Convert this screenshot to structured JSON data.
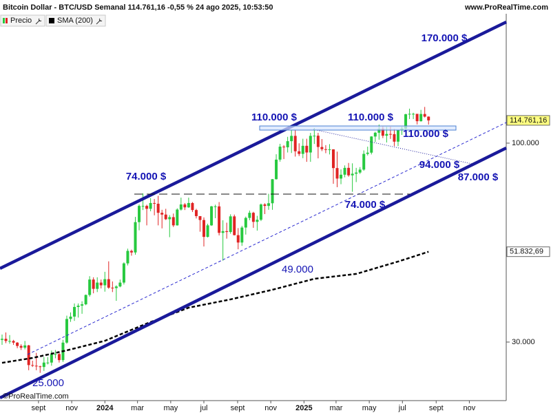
{
  "chart_data": {
    "type": "candlestick",
    "title": "Bitcoin Dollar - BTC/USD Semanal 114.761,16 -0,55 % 24 ago 2025, 10:53:50",
    "source": "www.ProRealTime.com",
    "copyright": "©ProRealTime.com",
    "log_scale": true,
    "ylim": [
      21050,
      218800
    ],
    "yticks": [
      {
        "value": 100000,
        "label": "100.000"
      },
      {
        "value": 30000,
        "label": "30.000"
      }
    ],
    "xlim": [
      -0.54,
      132.4
    ],
    "xticks": [
      {
        "value": 9.57,
        "label": "sept"
      },
      {
        "value": 18.29,
        "label": "nov"
      },
      {
        "value": 27,
        "label": "2024"
      },
      {
        "value": 35.57,
        "label": "mar"
      },
      {
        "value": 44.29,
        "label": "may"
      },
      {
        "value": 53,
        "label": "jul"
      },
      {
        "value": 61.86,
        "label": "sept"
      },
      {
        "value": 70.57,
        "label": "nov"
      },
      {
        "value": 79.29,
        "label": "2025"
      },
      {
        "value": 87.71,
        "label": "mar"
      },
      {
        "value": 96.43,
        "label": "may"
      },
      {
        "value": 105.14,
        "label": "jul"
      },
      {
        "value": 114,
        "label": "sept"
      },
      {
        "value": 122.71,
        "label": "nov"
      }
    ],
    "series": [
      {
        "name": "Precio",
        "type": "candlestick",
        "up_color": "#27c93f",
        "down_color": "#e02424",
        "open": [
          30400,
          30600,
          30200,
          30200,
          29900,
          29300,
          29000,
          29400,
          26100,
          26000,
          25900,
          25800,
          26500,
          26500,
          27900,
          27900,
          26900,
          29900,
          34500,
          35000,
          37100,
          37400,
          37700,
          39900,
          43800,
          41400,
          43000,
          42300,
          43900,
          41700,
          41600,
          42000,
          43000,
          48300,
          52100,
          51600,
          62000,
          68400,
          68400,
          67200,
          69600,
          69300,
          65600,
          64900,
          63100,
          63900,
          60800,
          66900,
          69000,
          67800,
          69600,
          66700,
          64300,
          62800,
          56700,
          60800,
          68200,
          68200,
          58100,
          58700,
          58400,
          64200,
          57300,
          54800,
          60000,
          63600,
          65600,
          62100,
          62900,
          69000,
          68400,
          69500,
          80400,
          90500,
          97900,
          97500,
          101200,
          104500,
          95200,
          93700,
          98400,
          94500,
          104500,
          104600,
          97700,
          96400,
          96100,
          96300,
          86000,
          80700,
          82600,
          86100,
          82300,
          83100,
          83700,
          85200,
          93700,
          94400,
          104100,
          106500,
          109000,
          104600,
          105700,
          105600,
          100900,
          108400,
          109200,
          119100,
          119400,
          119400,
          114200,
          119300,
          117400
        ],
        "high": [
          31400,
          31800,
          31300,
          30400,
          30000,
          29600,
          30200,
          29500,
          26800,
          28100,
          26000,
          27400,
          27400,
          28500,
          28600,
          28200,
          30400,
          35200,
          35900,
          37900,
          37900,
          38400,
          40000,
          44700,
          44400,
          44400,
          43800,
          45900,
          48900,
          43300,
          42300,
          43800,
          48600,
          52800,
          52500,
          64000,
          69000,
          73800,
          68900,
          71700,
          71300,
          72700,
          66800,
          67200,
          64700,
          65300,
          67400,
          71900,
          69600,
          71900,
          70000,
          67200,
          64300,
          63800,
          61400,
          68400,
          68900,
          70000,
          62700,
          61800,
          65000,
          64900,
          59800,
          60600,
          64100,
          66500,
          66000,
          64400,
          69400,
          69500,
          73600,
          80500,
          93500,
          99600,
          98800,
          103900,
          108300,
          108300,
          99900,
          102700,
          102700,
          106400,
          109600,
          106400,
          102500,
          98800,
          99400,
          96400,
          95000,
          85300,
          87400,
          88700,
          88500,
          86100,
          86500,
          95700,
          97900,
          104300,
          107100,
          111900,
          110600,
          110400,
          110500,
          108900,
          108500,
          110500,
          119500,
          123200,
          120200,
          119300,
          122300,
          124500,
          117600
        ],
        "low": [
          29500,
          29800,
          29700,
          29500,
          28900,
          28600,
          28700,
          25300,
          25800,
          25300,
          24900,
          25200,
          26200,
          26000,
          27200,
          26500,
          26600,
          29700,
          33900,
          34100,
          34800,
          35600,
          37500,
          39500,
          40300,
          40600,
          41500,
          40700,
          41400,
          40600,
          38500,
          41800,
          42500,
          47700,
          50600,
          50900,
          59000,
          66700,
          60800,
          66200,
          64600,
          60800,
          59700,
          62800,
          56600,
          60200,
          60700,
          66500,
          66700,
          67600,
          65900,
          63400,
          58500,
          53500,
          56500,
          60600,
          63500,
          57200,
          49100,
          56100,
          57800,
          57200,
          52600,
          53700,
          57500,
          62700,
          59900,
          58900,
          62400,
          65100,
          66800,
          66800,
          80200,
          89400,
          90800,
          94500,
          94200,
          92200,
          92500,
          91300,
          89300,
          89300,
          99500,
          91200,
          95300,
          94100,
          93400,
          78200,
          76600,
          78000,
          81300,
          81600,
          74500,
          79000,
          83000,
          84600,
          92800,
          93400,
          100700,
          102100,
          103100,
          100400,
          102600,
          98200,
          98200,
          105100,
          107500,
          115700,
          115700,
          112000,
          113900,
          116800,
          111900
        ],
        "close": [
          30600,
          30200,
          30200,
          29900,
          29300,
          29000,
          29400,
          26100,
          26000,
          25900,
          25800,
          26500,
          26500,
          27900,
          27900,
          26900,
          29900,
          34500,
          35000,
          37100,
          37400,
          37700,
          39900,
          43800,
          41400,
          43000,
          42300,
          43900,
          41700,
          41600,
          42000,
          43000,
          48300,
          52100,
          51600,
          62000,
          68400,
          68400,
          67200,
          69600,
          69300,
          65600,
          64900,
          63100,
          63900,
          60800,
          66900,
          69000,
          67800,
          69600,
          66700,
          64300,
          62800,
          56700,
          60800,
          68200,
          68200,
          58100,
          58700,
          58400,
          64200,
          57300,
          54800,
          60000,
          63600,
          65600,
          62100,
          62900,
          69000,
          68400,
          69500,
          80400,
          90500,
          97900,
          97500,
          101200,
          104500,
          95200,
          93700,
          98400,
          94500,
          104500,
          104600,
          97700,
          96400,
          96100,
          96300,
          86000,
          80700,
          82600,
          86100,
          82300,
          83100,
          83700,
          85200,
          93700,
          94400,
          104100,
          106500,
          109000,
          104600,
          105700,
          105600,
          100900,
          108400,
          109200,
          119100,
          119400,
          119400,
          114200,
          119300,
          117400,
          114761.16
        ],
        "last_label": {
          "value": 114761.16,
          "label": "114.761,16"
        }
      },
      {
        "name": "SMA (200)",
        "type": "line",
        "color": "#000000",
        "dashed": true,
        "x": [
          0,
          8,
          17,
          27,
          38,
          49,
          60,
          71,
          82,
          93,
          104,
          112
        ],
        "values": [
          26460,
          27250,
          28530,
          30230,
          33560,
          36940,
          38840,
          41170,
          44000,
          45320,
          48840,
          51832.69
        ],
        "last_label": {
          "value": 51832.69,
          "label": "51.832,69"
        }
      }
    ],
    "annotations": [
      "170.000 $",
      "110.000 $",
      "110.000 $",
      "110.000 $",
      "74.000 $",
      "94.000 $",
      "87.000 $",
      "74.000 $",
      "49.000",
      "25.000"
    ]
  }
}
